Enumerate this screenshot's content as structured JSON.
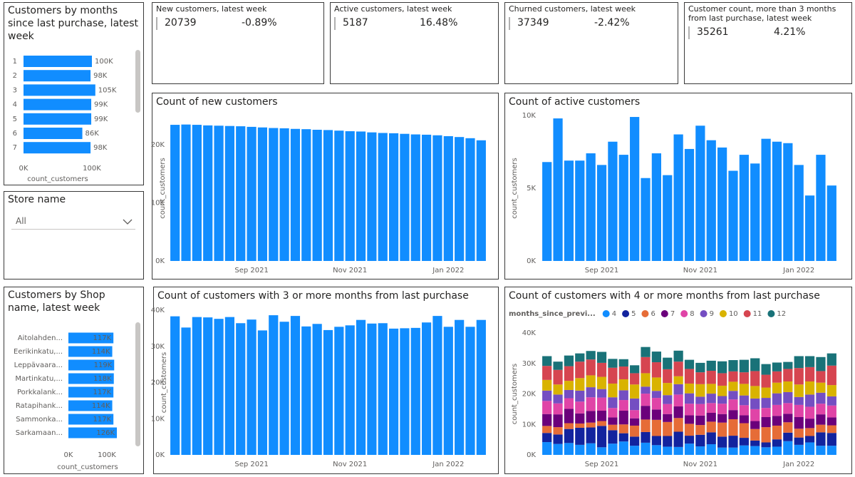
{
  "cards": [
    {
      "title": "New customers, latest week",
      "value": 20739,
      "change": "-0.89%"
    },
    {
      "title": "Active customers, latest week",
      "value": 5187,
      "change": "16.48%"
    },
    {
      "title": "Churned customers, latest week",
      "value": 37349,
      "change": "-2.42%"
    },
    {
      "title": "Customer count, more than 3 months from last purchase, latest week",
      "value": 35261,
      "change": "4.21%"
    }
  ],
  "slicer": {
    "title": "Store name",
    "value": "All"
  },
  "chart_data": [
    {
      "type": "hbar",
      "title": "Customers by months since last purchase, latest week",
      "categories": [
        "1",
        "2",
        "3",
        "4",
        "5",
        "6",
        "7"
      ],
      "values": [
        100000,
        98000,
        105000,
        99000,
        99000,
        86000,
        98000
      ],
      "value_labels": [
        "100K",
        "98K",
        "105K",
        "99K",
        "99K",
        "86K",
        "98K"
      ],
      "color": "#118dff",
      "xlabel": "count_customers",
      "xlim": [
        0,
        150000
      ],
      "xticks": [
        {
          "value": 0,
          "label": "0K"
        },
        {
          "value": 100000,
          "label": "100K"
        }
      ]
    },
    {
      "type": "hbar",
      "title": "Customers by Shop name, latest week",
      "categories": [
        "Aitolahden...",
        "Eerikinkatu,...",
        "Leppävaara...",
        "Martinkatu,...",
        "Porkkalank...",
        "Ratapihank...",
        "Sammonka...",
        "Sarkamaan..."
      ],
      "values": [
        117000,
        114000,
        119000,
        118000,
        117000,
        114000,
        117000,
        126000
      ],
      "value_labels": [
        "117K",
        "114K",
        "119K",
        "118K",
        "117K",
        "114K",
        "117K",
        "126K"
      ],
      "color": "#118dff",
      "xlabel": "count_customers",
      "xlim": [
        0,
        150000
      ],
      "xticks": [
        {
          "value": 0,
          "label": "0K"
        },
        {
          "value": 100000,
          "label": "100K"
        }
      ]
    },
    {
      "type": "bar",
      "title": "Count of new customers",
      "ylabel": "count_customers",
      "color": "#118dff",
      "categories": [
        null,
        null,
        null,
        null,
        null,
        null,
        null,
        "Sep 2021",
        null,
        null,
        null,
        null,
        null,
        null,
        null,
        null,
        "Nov 2021",
        null,
        null,
        null,
        null,
        null,
        null,
        null,
        null,
        "Jan 2022",
        null,
        null,
        null
      ],
      "values": [
        23400,
        23450,
        23400,
        23300,
        23250,
        23200,
        23150,
        23050,
        22950,
        22850,
        22800,
        22700,
        22650,
        22550,
        22500,
        22400,
        22300,
        22250,
        22100,
        22000,
        21950,
        21850,
        21750,
        21700,
        21600,
        21450,
        21300,
        21100,
        20739
      ],
      "ylim": [
        0,
        25000
      ],
      "yticks": [
        {
          "value": 0,
          "label": "0K"
        },
        {
          "value": 10000,
          "label": "10K"
        },
        {
          "value": 20000,
          "label": "20K"
        }
      ]
    },
    {
      "type": "bar",
      "title": "Count of active customers",
      "ylabel": "count_customers",
      "color": "#118dff",
      "categories": [
        null,
        null,
        null,
        null,
        null,
        "Sep 2021",
        null,
        null,
        null,
        null,
        null,
        null,
        null,
        null,
        "Nov 2021",
        null,
        null,
        null,
        null,
        null,
        null,
        null,
        null,
        "Jan 2022",
        null,
        null,
        null
      ],
      "values": [
        6800,
        9800,
        6900,
        6900,
        7400,
        6600,
        8200,
        7300,
        9900,
        5700,
        7400,
        5900,
        8700,
        7700,
        9300,
        8300,
        7800,
        6200,
        7300,
        6700,
        8400,
        8200,
        8100,
        6600,
        4500,
        7300,
        5187
      ],
      "ylim": [
        0,
        10000
      ],
      "yticks": [
        {
          "value": 0,
          "label": "0K"
        },
        {
          "value": 5000,
          "label": "5K"
        },
        {
          "value": 10000,
          "label": "10K"
        }
      ]
    },
    {
      "type": "bar",
      "title": "Count of customers with 3 or more months from last purchase",
      "ylabel": "count_customers",
      "color": "#118dff",
      "categories": [
        null,
        null,
        null,
        null,
        null,
        null,
        null,
        "Sep 2021",
        null,
        null,
        null,
        null,
        null,
        null,
        null,
        null,
        "Nov 2021",
        null,
        null,
        null,
        null,
        null,
        null,
        null,
        null,
        "Jan 2022",
        null,
        null,
        null
      ],
      "values": [
        38300,
        35200,
        38100,
        38000,
        37600,
        38100,
        36400,
        37400,
        34400,
        38600,
        36800,
        38400,
        35500,
        36200,
        34500,
        35400,
        35800,
        37300,
        36300,
        36400,
        34900,
        35000,
        35100,
        36600,
        38400,
        35400,
        37300,
        35400,
        37300
      ],
      "ylim": [
        0,
        40000
      ],
      "yticks": [
        {
          "value": 0,
          "label": "0K"
        },
        {
          "value": 10000,
          "label": "10K"
        },
        {
          "value": 20000,
          "label": "20K"
        },
        {
          "value": 30000,
          "label": "30K"
        },
        {
          "value": 40000,
          "label": "40K"
        }
      ]
    },
    {
      "type": "stacked_bar",
      "title": "Count of customers with 4 or more months from last purchase",
      "ylabel": "count_customers",
      "legend_title": "months_since_previ...",
      "legend": "top-left",
      "categories": [
        null,
        null,
        null,
        null,
        null,
        "Sep 2021",
        null,
        null,
        null,
        null,
        null,
        null,
        null,
        null,
        "Nov 2021",
        null,
        null,
        null,
        null,
        null,
        null,
        null,
        null,
        "Jan 2022",
        null,
        null,
        null
      ],
      "series": [
        {
          "name": "4",
          "color": "#118dff",
          "values": [
            4200,
            3600,
            3900,
            3300,
            3800,
            2500,
            3700,
            4400,
            3000,
            4000,
            3200,
            2700,
            2600,
            3700,
            2800,
            3500,
            2400,
            2400,
            3100,
            2900,
            2500,
            2700,
            4500,
            3300,
            4100,
            3000,
            3000
          ]
        },
        {
          "name": "5",
          "color": "#12239e",
          "values": [
            3000,
            3100,
            4600,
            5600,
            5200,
            7000,
            4400,
            2700,
            3000,
            3500,
            3000,
            3500,
            5000,
            2600,
            3800,
            3900,
            3600,
            3900,
            2500,
            1800,
            1600,
            2400,
            2800,
            2400,
            2100,
            4400,
            4200
          ]
        },
        {
          "name": "6",
          "color": "#e66c37",
          "values": [
            2300,
            2400,
            1900,
            1400,
            1600,
            1600,
            1800,
            2900,
            3600,
            4100,
            5300,
            4600,
            4500,
            3900,
            3200,
            3500,
            4600,
            5400,
            4800,
            3800,
            5000,
            4500,
            3400,
            2900,
            2600,
            2500,
            2500
          ]
        },
        {
          "name": "7",
          "color": "#6b007b",
          "values": [
            3900,
            4200,
            4700,
            3300,
            3800,
            3400,
            2400,
            4500,
            2400,
            4500,
            3400,
            2600,
            3800,
            2800,
            3100,
            2900,
            2800,
            3000,
            2600,
            2600,
            3300,
            3200,
            2800,
            3800,
            3100,
            3400,
            2600
          ]
        },
        {
          "name": "8",
          "color": "#e044a7",
          "values": [
            4300,
            3600,
            3500,
            3900,
            4500,
            4300,
            3100,
            3500,
            2700,
            4000,
            3800,
            3300,
            3900,
            3800,
            3800,
            3200,
            3400,
            3500,
            3300,
            3900,
            3000,
            3600,
            3500,
            4000,
            3900,
            3500,
            3900
          ]
        },
        {
          "name": "9",
          "color": "#744ec2",
          "values": [
            3400,
            2900,
            2700,
            3600,
            3300,
            2800,
            3500,
            3200,
            3800,
            2300,
            2300,
            2900,
            3400,
            3400,
            2400,
            3100,
            2500,
            2800,
            3200,
            3500,
            3300,
            3800,
            3600,
            2600,
            4000,
            3600,
            3000
          ]
        },
        {
          "name": "10",
          "color": "#d9b300",
          "values": [
            3500,
            3300,
            3000,
            4100,
            3900,
            4000,
            4500,
            3600,
            4600,
            4400,
            4400,
            4000,
            2600,
            3200,
            4100,
            3200,
            3400,
            3000,
            3800,
            4100,
            3400,
            3500,
            3500,
            4100,
            4300,
            3300,
            3700
          ]
        },
        {
          "name": "11",
          "color": "#d64550",
          "values": [
            4600,
            4800,
            4800,
            5400,
            5200,
            4600,
            5200,
            4200,
            3700,
            5300,
            5000,
            4500,
            4800,
            4800,
            3900,
            4300,
            4100,
            3400,
            3800,
            4900,
            4200,
            3700,
            4100,
            5400,
            4700,
            3800,
            6400
          ]
        },
        {
          "name": "12",
          "color": "#197278",
          "values": [
            3200,
            2700,
            3500,
            2700,
            2800,
            3600,
            2900,
            2400,
            2600,
            3300,
            3500,
            3800,
            3600,
            3000,
            3100,
            3300,
            3900,
            3700,
            4100,
            4200,
            3500,
            2900,
            2300,
            3900,
            3600,
            4600,
            4000
          ]
        }
      ],
      "ylim": [
        0,
        40000
      ],
      "yticks": [
        {
          "value": 0,
          "label": "0K"
        },
        {
          "value": 10000,
          "label": "10K"
        },
        {
          "value": 20000,
          "label": "20K"
        },
        {
          "value": 30000,
          "label": "30K"
        },
        {
          "value": 40000,
          "label": "40K"
        }
      ]
    }
  ]
}
